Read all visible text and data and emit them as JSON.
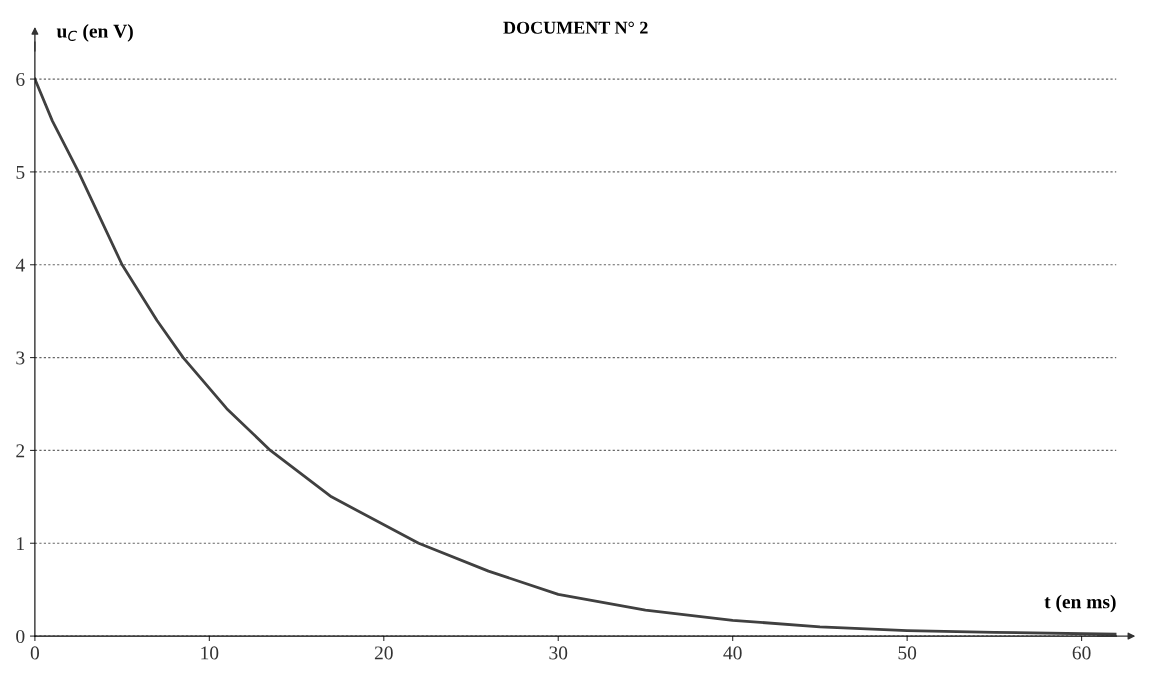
{
  "chart_data": {
    "type": "line",
    "title": "DOCUMENT N° 2",
    "xlabel": "t (en ms)",
    "ylabel": "u$_{C}$ (en V)",
    "x": [
      0,
      1,
      2.5,
      5,
      7,
      8.5,
      11,
      13.5,
      17,
      22,
      26,
      30,
      35,
      40,
      45,
      50,
      55,
      62
    ],
    "series": [
      {
        "color": "#404040",
        "values": [
          6.0,
          5.55,
          5.0,
          4.0,
          3.4,
          3.0,
          2.45,
          2.0,
          1.5,
          1.0,
          0.7,
          0.45,
          0.28,
          0.17,
          0.1,
          0.06,
          0.04,
          0.02
        ]
      }
    ],
    "xlim": [
      0,
      62
    ],
    "ylim": [
      0,
      6.4
    ],
    "xticks": [
      0,
      10,
      20,
      30,
      40,
      50,
      60
    ],
    "yticks": [
      0,
      1,
      2,
      3,
      4,
      5,
      6
    ],
    "grid": "y",
    "marker": "none",
    "line_style": "solid",
    "legend": false
  }
}
